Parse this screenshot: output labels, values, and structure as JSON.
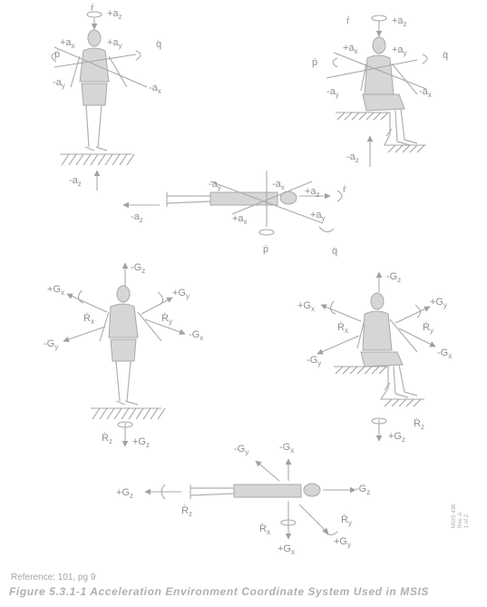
{
  "labels": {
    "r_dot": "ṙ",
    "p_dot": "ṗ",
    "q_dot": "q̇",
    "ax_pos": "+a",
    "ax_neg": "-a",
    "ay_pos": "+a",
    "ay_neg": "-a",
    "az_pos": "+a",
    "az_neg": "-a",
    "Gx_pos": "+G",
    "Gx_neg": "-G",
    "Gy_pos": "+G",
    "Gy_neg": "-G",
    "Gz_pos": "+G",
    "Gz_neg": "-G",
    "Rx": "Ṙ",
    "Ry": "Ṙ",
    "Rz": "Ṙ",
    "sub_x": "x",
    "sub_y": "y",
    "sub_z": "z"
  },
  "reference": "Reference: 101, pg 9",
  "caption": "Figure 5.3.1-1  Acceleration Environment Coordinate System Used in MSIS",
  "side_note": [
    "MSIS 436",
    "Rev. A",
    "1 of 2."
  ]
}
